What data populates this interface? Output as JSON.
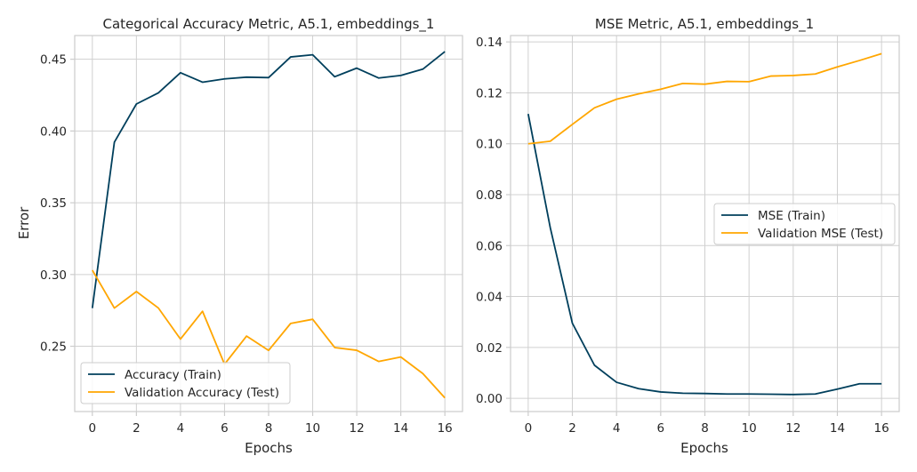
{
  "chart_data": [
    {
      "type": "line",
      "title": "Categorical Accuracy Metric, A5.1, embeddings_1",
      "xlabel": "Epochs",
      "ylabel": "Error",
      "x": [
        0,
        1,
        2,
        3,
        4,
        5,
        6,
        7,
        8,
        9,
        10,
        11,
        12,
        13,
        14,
        15,
        16
      ],
      "xlim": [
        -0.8,
        16.8
      ],
      "ylim": [
        0.2045,
        0.4665
      ],
      "xticks": [
        0,
        2,
        4,
        6,
        8,
        10,
        12,
        14,
        16
      ],
      "xtick_labels": [
        "0",
        "2",
        "4",
        "6",
        "8",
        "10",
        "12",
        "14",
        "16"
      ],
      "yticks": [
        0.25,
        0.3,
        0.35,
        0.4,
        0.45
      ],
      "ytick_labels": [
        "0.25",
        "0.30",
        "0.35",
        "0.40",
        "0.45"
      ],
      "grid": true,
      "legend": "lower-left",
      "series": [
        {
          "name": "Accuracy (Train)",
          "color": "#003f5c",
          "values": [
            0.2766,
            0.3922,
            0.4188,
            0.4266,
            0.4406,
            0.434,
            0.4363,
            0.4375,
            0.4372,
            0.4516,
            0.4531,
            0.4378,
            0.4438,
            0.4369,
            0.4387,
            0.4431,
            0.4553
          ]
        },
        {
          "name": "Validation Accuracy (Test)",
          "color": "#ffa600",
          "values": [
            0.303,
            0.2766,
            0.2881,
            0.2766,
            0.255,
            0.2744,
            0.2375,
            0.2571,
            0.2471,
            0.2659,
            0.2688,
            0.2491,
            0.2472,
            0.2394,
            0.2425,
            0.231,
            0.214
          ]
        }
      ]
    },
    {
      "type": "line",
      "title": "MSE Metric, A5.1, embeddings_1",
      "xlabel": "Epochs",
      "ylabel": "",
      "x": [
        0,
        1,
        2,
        3,
        4,
        5,
        6,
        7,
        8,
        9,
        10,
        11,
        12,
        13,
        14,
        15,
        16
      ],
      "xlim": [
        -0.8,
        16.8
      ],
      "ylim": [
        -0.0052,
        0.1425
      ],
      "xticks": [
        0,
        2,
        4,
        6,
        8,
        10,
        12,
        14,
        16
      ],
      "xtick_labels": [
        "0",
        "2",
        "4",
        "6",
        "8",
        "10",
        "12",
        "14",
        "16"
      ],
      "yticks": [
        0.0,
        0.02,
        0.04,
        0.06,
        0.08,
        0.1,
        0.12,
        0.14
      ],
      "ytick_labels": [
        "0.00",
        "0.02",
        "0.04",
        "0.06",
        "0.08",
        "0.10",
        "0.12",
        "0.14"
      ],
      "grid": true,
      "legend": "center-right",
      "series": [
        {
          "name": "MSE (Train)",
          "color": "#003f5c",
          "values": [
            0.1117,
            0.067,
            0.0295,
            0.013,
            0.0063,
            0.0038,
            0.0025,
            0.002,
            0.0019,
            0.0017,
            0.0017,
            0.0016,
            0.0015,
            0.0017,
            0.0036,
            0.0057,
            0.0057
          ]
        },
        {
          "name": "Validation MSE (Test)",
          "color": "#ffa600",
          "values": [
            0.1,
            0.101,
            0.1076,
            0.1141,
            0.1175,
            0.1196,
            0.1214,
            0.1237,
            0.1234,
            0.1245,
            0.1244,
            0.1266,
            0.1268,
            0.1274,
            0.1302,
            0.1327,
            0.1354
          ]
        }
      ]
    }
  ]
}
